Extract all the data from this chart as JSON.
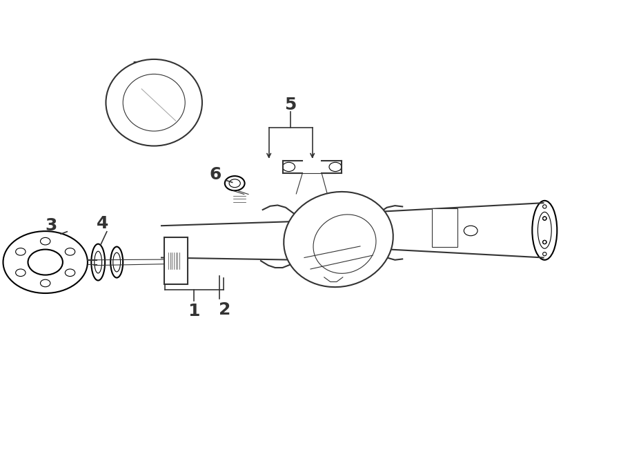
{
  "title": "",
  "background_color": "#ffffff",
  "line_color": "#333333",
  "label_fontsize": 18,
  "figsize": [
    9.0,
    6.61
  ],
  "dpi": 100
}
